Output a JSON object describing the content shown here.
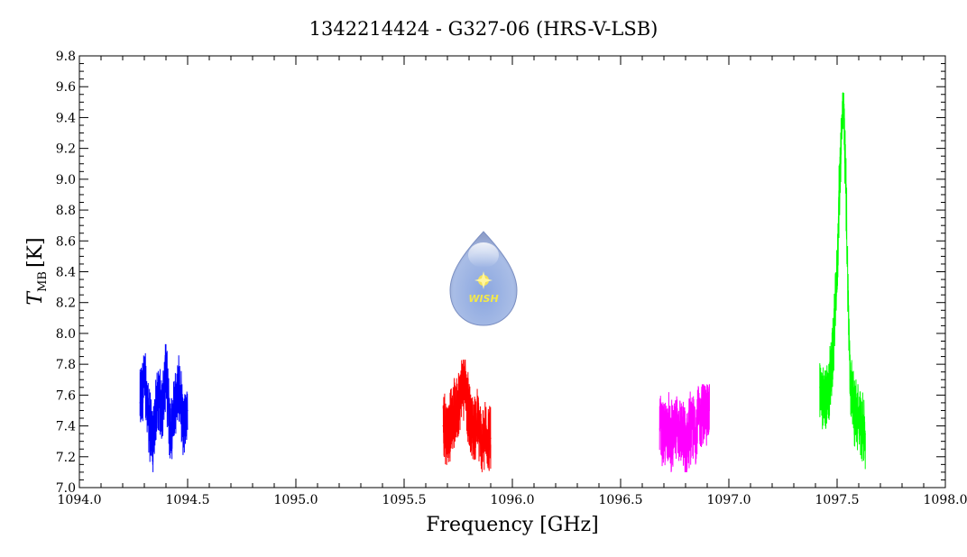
{
  "chart_data": {
    "type": "line",
    "title": "1342214424 - G327-06 (HRS-V-LSB)",
    "xlabel": "Frequency [GHz]",
    "ylabel_main": "T",
    "ylabel_sub": "MB",
    "ylabel_unit": "[K]",
    "xlim": [
      1094.0,
      1098.0
    ],
    "ylim": [
      7.0,
      9.8
    ],
    "x_ticks": [
      1094.0,
      1094.5,
      1095.0,
      1095.5,
      1096.0,
      1096.5,
      1097.0,
      1097.5,
      1098.0
    ],
    "x_tick_labels": [
      "1094.0",
      "1094.5",
      "1095.0",
      "1095.5",
      "1096.0",
      "1096.5",
      "1097.0",
      "1097.5",
      "1098.0"
    ],
    "y_ticks": [
      7.0,
      7.2,
      7.4,
      7.6,
      7.8,
      8.0,
      8.2,
      8.4,
      8.6,
      8.8,
      9.0,
      9.2,
      9.4,
      9.6,
      9.8
    ],
    "y_tick_labels": [
      "7.0",
      "7.2",
      "7.4",
      "7.6",
      "7.8",
      "8.0",
      "8.2",
      "8.4",
      "8.6",
      "8.8",
      "9.0",
      "9.2",
      "9.4",
      "9.6",
      "9.8"
    ],
    "grid": false,
    "legend": "none",
    "series": [
      {
        "color": "#0000ff",
        "x": [
          1094.28,
          1094.3,
          1094.32,
          1094.34,
          1094.36,
          1094.38,
          1094.4,
          1094.42,
          1094.44,
          1094.46,
          1094.48,
          1094.5
        ],
        "y": [
          7.55,
          7.7,
          7.45,
          7.3,
          7.6,
          7.5,
          7.75,
          7.35,
          7.55,
          7.65,
          7.4,
          7.5
        ],
        "y_min": 7.1,
        "y_max": 7.93
      },
      {
        "color": "#ff0000",
        "x": [
          1095.68,
          1095.7,
          1095.72,
          1095.74,
          1095.76,
          1095.78,
          1095.8,
          1095.82,
          1095.84,
          1095.86,
          1095.88,
          1095.9
        ],
        "y": [
          7.4,
          7.35,
          7.45,
          7.5,
          7.6,
          7.72,
          7.45,
          7.38,
          7.42,
          7.3,
          7.35,
          7.32
        ],
        "y_min": 7.1,
        "y_max": 7.83
      },
      {
        "color": "#ff00ff",
        "x": [
          1096.68,
          1096.7,
          1096.72,
          1096.74,
          1096.76,
          1096.78,
          1096.8,
          1096.82,
          1096.84,
          1096.86,
          1096.88,
          1096.91
        ],
        "y": [
          7.38,
          7.32,
          7.4,
          7.3,
          7.42,
          7.35,
          7.28,
          7.4,
          7.38,
          7.45,
          7.48,
          7.5
        ],
        "y_min": 7.1,
        "y_max": 7.67
      },
      {
        "color": "#00ff00",
        "x": [
          1097.42,
          1097.44,
          1097.46,
          1097.48,
          1097.5,
          1097.51,
          1097.52,
          1097.53,
          1097.54,
          1097.55,
          1097.56,
          1097.58,
          1097.6,
          1097.63
        ],
        "y": [
          7.65,
          7.55,
          7.6,
          7.85,
          8.4,
          8.9,
          9.3,
          9.5,
          9.0,
          8.3,
          7.7,
          7.5,
          7.45,
          7.35
        ],
        "y_min": 7.12,
        "y_max": 9.56
      }
    ]
  },
  "watermark": {
    "text": "WISH"
  }
}
